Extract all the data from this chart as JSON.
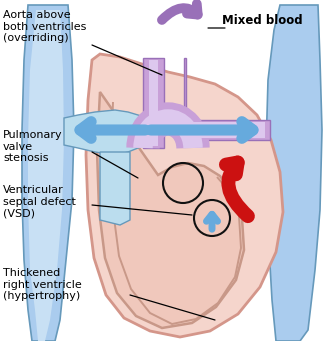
{
  "bg_color": "#ffffff",
  "labels": {
    "aorta": "Aorta above\nboth ventricles\n(overriding)",
    "pulmonary": "Pulmonary\nvalve\nstenosis",
    "vsd": "Ventricular\nseptal defect\n(VSD)",
    "thickened": "Thickened\nright ventricle\n(hypertrophy)",
    "mixed": "Mixed blood"
  },
  "colors": {
    "white": "#ffffff",
    "heart_fill": "#f5d5cc",
    "heart_edge": "#d4968a",
    "blue_vessel": "#aaccee",
    "blue_vessel_dark": "#6699bb",
    "blue_vessel_fill": "#bbddee",
    "blue_vessel_mid": "#c8e0f4",
    "purple_aorta": "#c8a0d8",
    "purple_aorta_dark": "#9970b8",
    "purple_aorta_light": "#ddc8ee",
    "red_blood": "#cc1111",
    "red_blood_dark": "#990000",
    "blue_arrow_fill": "#66aadd",
    "blue_arrow_dark": "#3377aa",
    "rv_fill": "#f0c8bc",
    "rv_edge": "#c89888",
    "text_color": "#000000",
    "circle_stroke": "#111111",
    "line_color": "#000000"
  },
  "figsize": [
    3.25,
    3.41
  ],
  "dpi": 100
}
